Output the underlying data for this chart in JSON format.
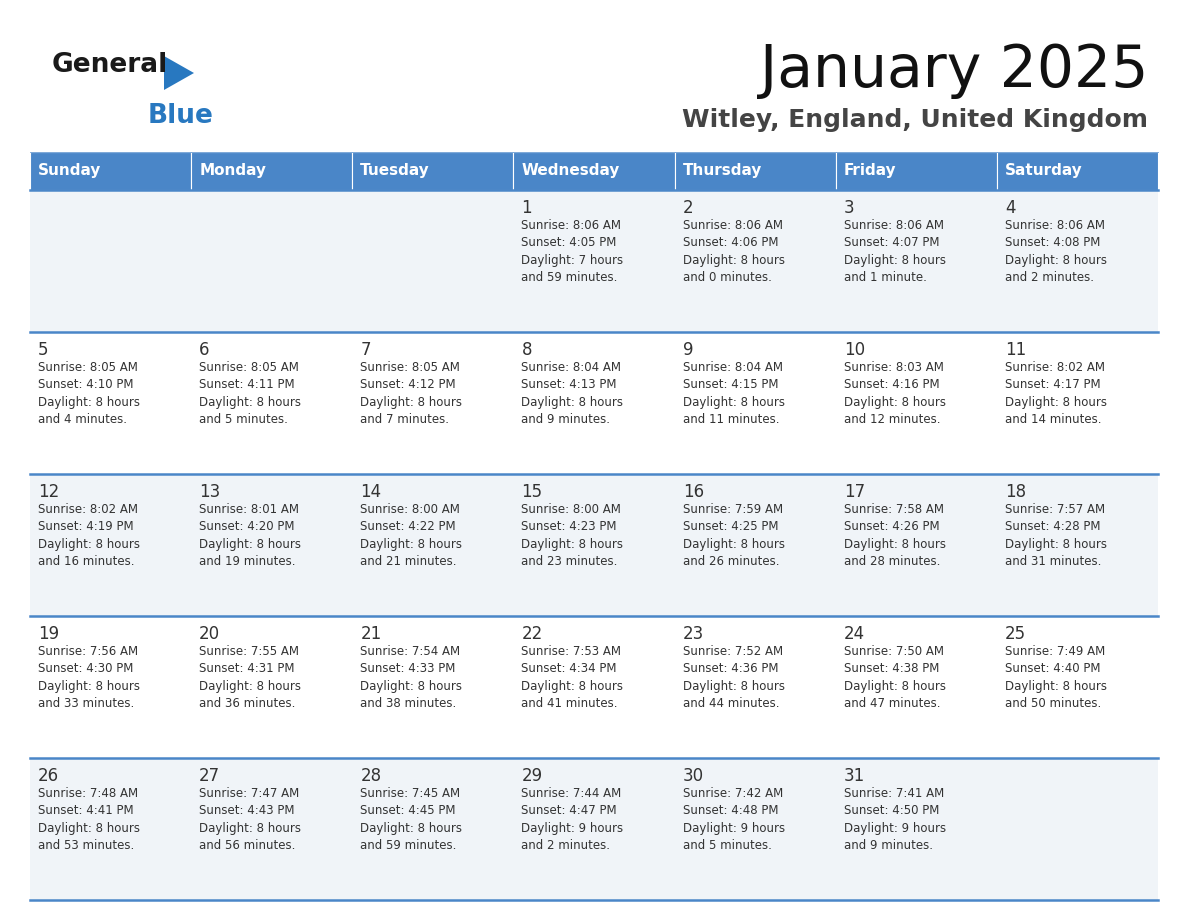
{
  "title": "January 2025",
  "subtitle": "Witley, England, United Kingdom",
  "header_color": "#4a86c8",
  "header_text_color": "#ffffff",
  "cell_bg_color": "#f0f4f8",
  "cell_bg_white": "#ffffff",
  "text_color": "#333333",
  "separator_color": "#4a86c8",
  "logo_black": "#1a1a1a",
  "logo_blue": "#2878c0",
  "days_of_week": [
    "Sunday",
    "Monday",
    "Tuesday",
    "Wednesday",
    "Thursday",
    "Friday",
    "Saturday"
  ],
  "calendar_data": [
    [
      {
        "day": "",
        "info": ""
      },
      {
        "day": "",
        "info": ""
      },
      {
        "day": "",
        "info": ""
      },
      {
        "day": "1",
        "info": "Sunrise: 8:06 AM\nSunset: 4:05 PM\nDaylight: 7 hours\nand 59 minutes."
      },
      {
        "day": "2",
        "info": "Sunrise: 8:06 AM\nSunset: 4:06 PM\nDaylight: 8 hours\nand 0 minutes."
      },
      {
        "day": "3",
        "info": "Sunrise: 8:06 AM\nSunset: 4:07 PM\nDaylight: 8 hours\nand 1 minute."
      },
      {
        "day": "4",
        "info": "Sunrise: 8:06 AM\nSunset: 4:08 PM\nDaylight: 8 hours\nand 2 minutes."
      }
    ],
    [
      {
        "day": "5",
        "info": "Sunrise: 8:05 AM\nSunset: 4:10 PM\nDaylight: 8 hours\nand 4 minutes."
      },
      {
        "day": "6",
        "info": "Sunrise: 8:05 AM\nSunset: 4:11 PM\nDaylight: 8 hours\nand 5 minutes."
      },
      {
        "day": "7",
        "info": "Sunrise: 8:05 AM\nSunset: 4:12 PM\nDaylight: 8 hours\nand 7 minutes."
      },
      {
        "day": "8",
        "info": "Sunrise: 8:04 AM\nSunset: 4:13 PM\nDaylight: 8 hours\nand 9 minutes."
      },
      {
        "day": "9",
        "info": "Sunrise: 8:04 AM\nSunset: 4:15 PM\nDaylight: 8 hours\nand 11 minutes."
      },
      {
        "day": "10",
        "info": "Sunrise: 8:03 AM\nSunset: 4:16 PM\nDaylight: 8 hours\nand 12 minutes."
      },
      {
        "day": "11",
        "info": "Sunrise: 8:02 AM\nSunset: 4:17 PM\nDaylight: 8 hours\nand 14 minutes."
      }
    ],
    [
      {
        "day": "12",
        "info": "Sunrise: 8:02 AM\nSunset: 4:19 PM\nDaylight: 8 hours\nand 16 minutes."
      },
      {
        "day": "13",
        "info": "Sunrise: 8:01 AM\nSunset: 4:20 PM\nDaylight: 8 hours\nand 19 minutes."
      },
      {
        "day": "14",
        "info": "Sunrise: 8:00 AM\nSunset: 4:22 PM\nDaylight: 8 hours\nand 21 minutes."
      },
      {
        "day": "15",
        "info": "Sunrise: 8:00 AM\nSunset: 4:23 PM\nDaylight: 8 hours\nand 23 minutes."
      },
      {
        "day": "16",
        "info": "Sunrise: 7:59 AM\nSunset: 4:25 PM\nDaylight: 8 hours\nand 26 minutes."
      },
      {
        "day": "17",
        "info": "Sunrise: 7:58 AM\nSunset: 4:26 PM\nDaylight: 8 hours\nand 28 minutes."
      },
      {
        "day": "18",
        "info": "Sunrise: 7:57 AM\nSunset: 4:28 PM\nDaylight: 8 hours\nand 31 minutes."
      }
    ],
    [
      {
        "day": "19",
        "info": "Sunrise: 7:56 AM\nSunset: 4:30 PM\nDaylight: 8 hours\nand 33 minutes."
      },
      {
        "day": "20",
        "info": "Sunrise: 7:55 AM\nSunset: 4:31 PM\nDaylight: 8 hours\nand 36 minutes."
      },
      {
        "day": "21",
        "info": "Sunrise: 7:54 AM\nSunset: 4:33 PM\nDaylight: 8 hours\nand 38 minutes."
      },
      {
        "day": "22",
        "info": "Sunrise: 7:53 AM\nSunset: 4:34 PM\nDaylight: 8 hours\nand 41 minutes."
      },
      {
        "day": "23",
        "info": "Sunrise: 7:52 AM\nSunset: 4:36 PM\nDaylight: 8 hours\nand 44 minutes."
      },
      {
        "day": "24",
        "info": "Sunrise: 7:50 AM\nSunset: 4:38 PM\nDaylight: 8 hours\nand 47 minutes."
      },
      {
        "day": "25",
        "info": "Sunrise: 7:49 AM\nSunset: 4:40 PM\nDaylight: 8 hours\nand 50 minutes."
      }
    ],
    [
      {
        "day": "26",
        "info": "Sunrise: 7:48 AM\nSunset: 4:41 PM\nDaylight: 8 hours\nand 53 minutes."
      },
      {
        "day": "27",
        "info": "Sunrise: 7:47 AM\nSunset: 4:43 PM\nDaylight: 8 hours\nand 56 minutes."
      },
      {
        "day": "28",
        "info": "Sunrise: 7:45 AM\nSunset: 4:45 PM\nDaylight: 8 hours\nand 59 minutes."
      },
      {
        "day": "29",
        "info": "Sunrise: 7:44 AM\nSunset: 4:47 PM\nDaylight: 9 hours\nand 2 minutes."
      },
      {
        "day": "30",
        "info": "Sunrise: 7:42 AM\nSunset: 4:48 PM\nDaylight: 9 hours\nand 5 minutes."
      },
      {
        "day": "31",
        "info": "Sunrise: 7:41 AM\nSunset: 4:50 PM\nDaylight: 9 hours\nand 9 minutes."
      },
      {
        "day": "",
        "info": ""
      }
    ]
  ]
}
